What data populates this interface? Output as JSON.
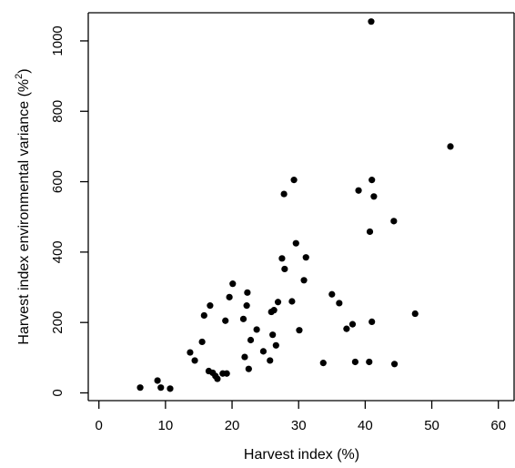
{
  "chart_data": {
    "type": "scatter",
    "title": "",
    "xlabel": "Harvest index (%)",
    "ylabel": "Harvest index environmental variance (%",
    "ylabel_superscript": "2",
    "ylabel_suffix": ")",
    "xlim": [
      -1.6,
      62.5
    ],
    "ylim": [
      -22,
      1080
    ],
    "xticks": [
      0,
      10,
      20,
      30,
      40,
      50,
      60
    ],
    "yticks": [
      0,
      200,
      400,
      600,
      800,
      1000
    ],
    "grid": false,
    "legend": "none",
    "point_color": "#000000",
    "series": [
      {
        "x": [
          6.2,
          8.8,
          9.3,
          10.7,
          13.7,
          14.4,
          15.5,
          15.8,
          16.5,
          16.7,
          17.1,
          17.5,
          17.8,
          18.6,
          19.0,
          19.2,
          19.6,
          20.1,
          21.7,
          21.9,
          22.2,
          22.3,
          22.5,
          22.8,
          23.7,
          24.7,
          25.7,
          25.9,
          26.1,
          26.3,
          26.6,
          26.9,
          27.5,
          27.8,
          27.9,
          29.0,
          29.3,
          29.6,
          30.1,
          30.8,
          31.1,
          33.7,
          35.0,
          36.1,
          37.2,
          38.1,
          38.5,
          39.0,
          40.6,
          40.7,
          40.9,
          41.0,
          41.0,
          41.3,
          44.3,
          44.4,
          47.5,
          52.8
        ],
        "y": [
          15,
          35,
          15,
          12,
          115,
          92,
          145,
          220,
          62,
          248,
          57,
          48,
          40,
          55,
          205,
          55,
          272,
          310,
          210,
          102,
          248,
          285,
          68,
          150,
          180,
          118,
          92,
          230,
          165,
          235,
          135,
          258,
          382,
          565,
          352,
          260,
          605,
          425,
          178,
          320,
          385,
          85,
          280,
          255,
          182,
          195,
          88,
          575,
          88,
          458,
          1055,
          605,
          202,
          558,
          488,
          82,
          225,
          700
        ]
      }
    ]
  }
}
